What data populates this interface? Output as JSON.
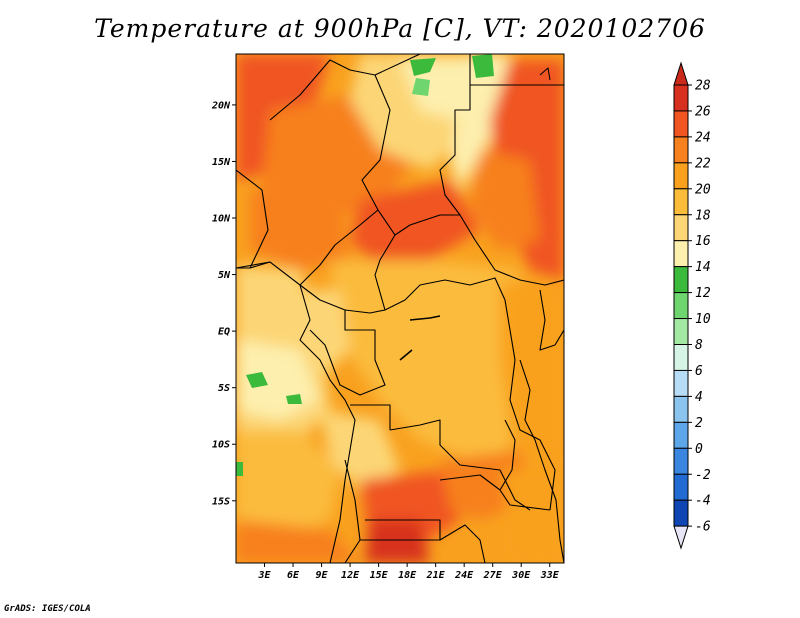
{
  "title": "Temperature at 900hPa [C], VT: 2020102706",
  "credit": "GrADS: IGES/COLA",
  "map": {
    "lon_range": [
      0,
      34.5
    ],
    "lat_range": [
      -20.5,
      24.5
    ],
    "lon_ticks": [
      "3E",
      "6E",
      "9E",
      "12E",
      "15E",
      "18E",
      "21E",
      "24E",
      "27E",
      "30E",
      "33E"
    ],
    "lat_ticks": [
      "20N",
      "15N",
      "10N",
      "5N",
      "EQ",
      "5S",
      "10S",
      "15S"
    ]
  },
  "colorbar": {
    "levels": [
      "28",
      "26",
      "24",
      "22",
      "20",
      "18",
      "16",
      "14",
      "12",
      "10",
      "8",
      "6",
      "4",
      "2",
      "0",
      "-2",
      "-4",
      "-6"
    ],
    "colors": [
      "#d7301f",
      "#f05522",
      "#f7801f",
      "#f9a11f",
      "#fbbc3c",
      "#fcd676",
      "#fdefae",
      "#3cba3c",
      "#6fd66f",
      "#a3e8a3",
      "#d6f5e6",
      "#b7dcf5",
      "#8cc4f0",
      "#5ea6ea",
      "#3a86e0",
      "#226bd3",
      "#1046b3",
      "#08218a"
    ],
    "low_cap_color": "#e6e6f7",
    "high_cap_color": "#c92a1a"
  }
}
